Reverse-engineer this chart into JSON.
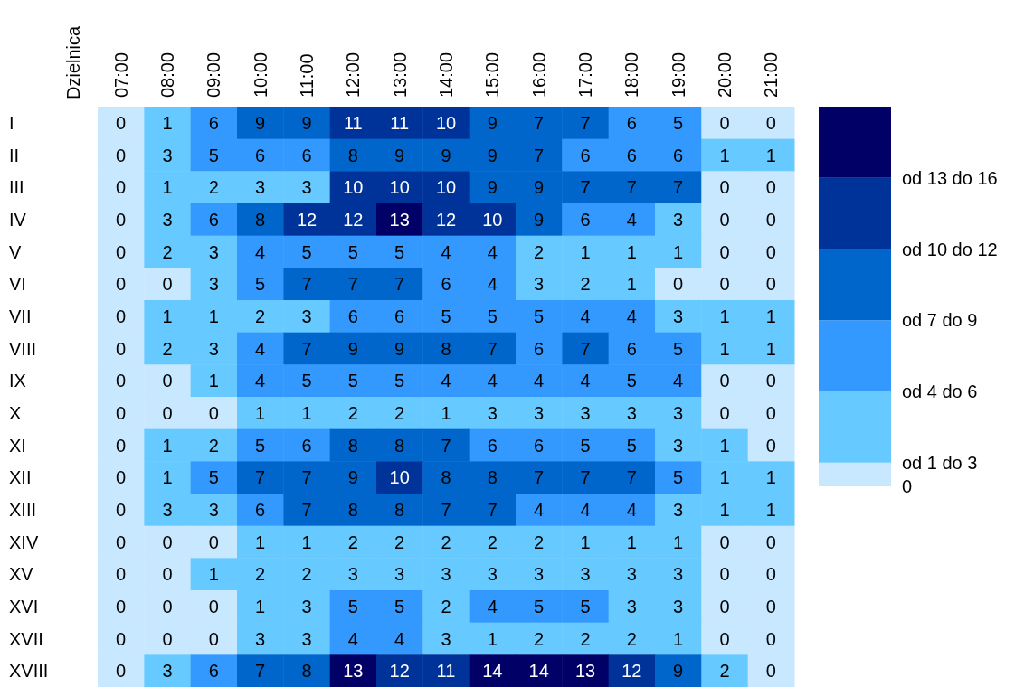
{
  "chart_data": {
    "type": "heatmap",
    "ylabel": "Dzielnica",
    "categories": [
      "07:00",
      "08:00",
      "09:00",
      "10:00",
      "11:00",
      "12:00",
      "13:00",
      "14:00",
      "15:00",
      "16:00",
      "17:00",
      "18:00",
      "19:00",
      "20:00",
      "21:00"
    ],
    "y_categories": [
      "I",
      "II",
      "III",
      "IV",
      "V",
      "VI",
      "VII",
      "VIII",
      "IX",
      "X",
      "XI",
      "XII",
      "XIII",
      "XIV",
      "XV",
      "XVI",
      "XVII",
      "XVIII"
    ],
    "cells": [
      [
        0,
        1,
        6,
        9,
        9,
        11,
        11,
        10,
        9,
        7,
        7,
        6,
        5,
        0,
        0
      ],
      [
        0,
        3,
        5,
        6,
        6,
        8,
        9,
        9,
        9,
        7,
        6,
        6,
        6,
        1,
        1
      ],
      [
        0,
        1,
        2,
        3,
        3,
        10,
        10,
        10,
        9,
        9,
        7,
        7,
        7,
        0,
        0
      ],
      [
        0,
        3,
        6,
        8,
        12,
        12,
        13,
        12,
        10,
        9,
        6,
        4,
        3,
        0,
        0
      ],
      [
        0,
        2,
        3,
        4,
        5,
        5,
        5,
        4,
        4,
        2,
        1,
        1,
        1,
        0,
        0
      ],
      [
        0,
        0,
        3,
        5,
        7,
        7,
        7,
        6,
        4,
        3,
        2,
        1,
        0,
        0,
        0
      ],
      [
        0,
        1,
        1,
        2,
        3,
        6,
        6,
        5,
        5,
        5,
        4,
        4,
        3,
        1,
        1
      ],
      [
        0,
        2,
        3,
        4,
        7,
        9,
        9,
        8,
        7,
        6,
        7,
        6,
        5,
        1,
        1
      ],
      [
        0,
        0,
        1,
        4,
        5,
        5,
        5,
        4,
        4,
        4,
        4,
        5,
        4,
        0,
        0
      ],
      [
        0,
        0,
        0,
        1,
        1,
        2,
        2,
        1,
        3,
        3,
        3,
        3,
        3,
        0,
        0
      ],
      [
        0,
        1,
        2,
        5,
        6,
        8,
        8,
        7,
        6,
        6,
        5,
        5,
        3,
        1,
        0
      ],
      [
        0,
        1,
        5,
        7,
        7,
        9,
        10,
        8,
        8,
        7,
        7,
        7,
        5,
        1,
        1
      ],
      [
        0,
        3,
        3,
        6,
        7,
        8,
        8,
        7,
        7,
        4,
        4,
        4,
        3,
        1,
        1
      ],
      [
        0,
        0,
        0,
        1,
        1,
        2,
        2,
        2,
        2,
        2,
        1,
        1,
        1,
        0,
        0
      ],
      [
        0,
        0,
        1,
        2,
        2,
        3,
        3,
        3,
        3,
        3,
        3,
        3,
        3,
        0,
        0
      ],
      [
        0,
        0,
        0,
        1,
        3,
        5,
        5,
        2,
        4,
        5,
        5,
        3,
        3,
        0,
        0
      ],
      [
        0,
        0,
        0,
        3,
        3,
        4,
        4,
        3,
        1,
        2,
        2,
        2,
        1,
        0,
        0
      ],
      [
        0,
        3,
        6,
        7,
        8,
        13,
        12,
        11,
        14,
        14,
        13,
        12,
        9,
        2,
        0
      ]
    ],
    "clim": [
      0,
      16
    ],
    "cticks": [
      {
        "value": 0,
        "label": "0"
      },
      {
        "value": 1,
        "label": "od 1 do 3"
      },
      {
        "value": 4,
        "label": "od 4 do 6"
      },
      {
        "value": 7,
        "label": "od 7 do 9"
      },
      {
        "value": 10,
        "label": "od 10 do 12"
      },
      {
        "value": 13,
        "label": "od 13 do 16"
      }
    ],
    "colors": [
      "#c8e8ff",
      "#66c9ff",
      "#3399ff",
      "#0066cc",
      "#003399",
      "#000066"
    ],
    "data_labels": true
  }
}
